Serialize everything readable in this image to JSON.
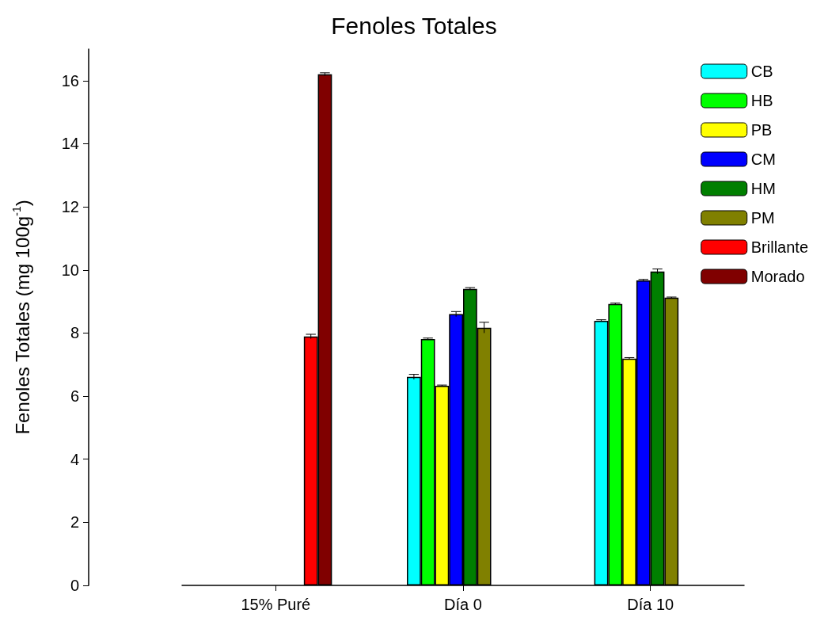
{
  "chart_data": {
    "type": "bar",
    "title": "Fenoles Totales",
    "ylabel": "Fenoles Totales (mg 100g$^{-1}$)",
    "categories": [
      "15% Puré",
      "Día 0",
      "Día 10"
    ],
    "series": [
      {
        "name": "CB",
        "color": "#00ffff",
        "values": [
          null,
          6.61,
          8.39
        ],
        "errors": [
          null,
          0.08,
          0.03
        ]
      },
      {
        "name": "HB",
        "color": "#00ff00",
        "values": [
          null,
          7.81,
          8.92
        ],
        "errors": [
          null,
          0.03,
          0.03
        ]
      },
      {
        "name": "PB",
        "color": "#ffff00",
        "values": [
          null,
          6.33,
          7.19
        ],
        "errors": [
          null,
          0.02,
          0.03
        ]
      },
      {
        "name": "CM",
        "color": "#0000ff",
        "values": [
          null,
          8.6,
          9.67
        ],
        "errors": [
          null,
          0.08,
          0.03
        ]
      },
      {
        "name": "HM",
        "color": "#007f00",
        "values": [
          null,
          9.4,
          9.95
        ],
        "errors": [
          null,
          0.04,
          0.08
        ]
      },
      {
        "name": "PM",
        "color": "#808000",
        "values": [
          null,
          8.17,
          9.12
        ],
        "errors": [
          null,
          0.17,
          0.02
        ]
      },
      {
        "name": "Brillante",
        "color": "#ff0000",
        "values": [
          7.89,
          null,
          null
        ],
        "errors": [
          0.07,
          null,
          null
        ]
      },
      {
        "name": "Morado",
        "color": "#800000",
        "values": [
          16.2,
          null,
          null
        ],
        "errors": [
          0.05,
          null,
          null
        ]
      }
    ],
    "ylim": [
      0,
      17
    ],
    "yticks": [
      0,
      2,
      4,
      6,
      8,
      10,
      12,
      14,
      16
    ],
    "grid": false,
    "legend": "top right"
  }
}
